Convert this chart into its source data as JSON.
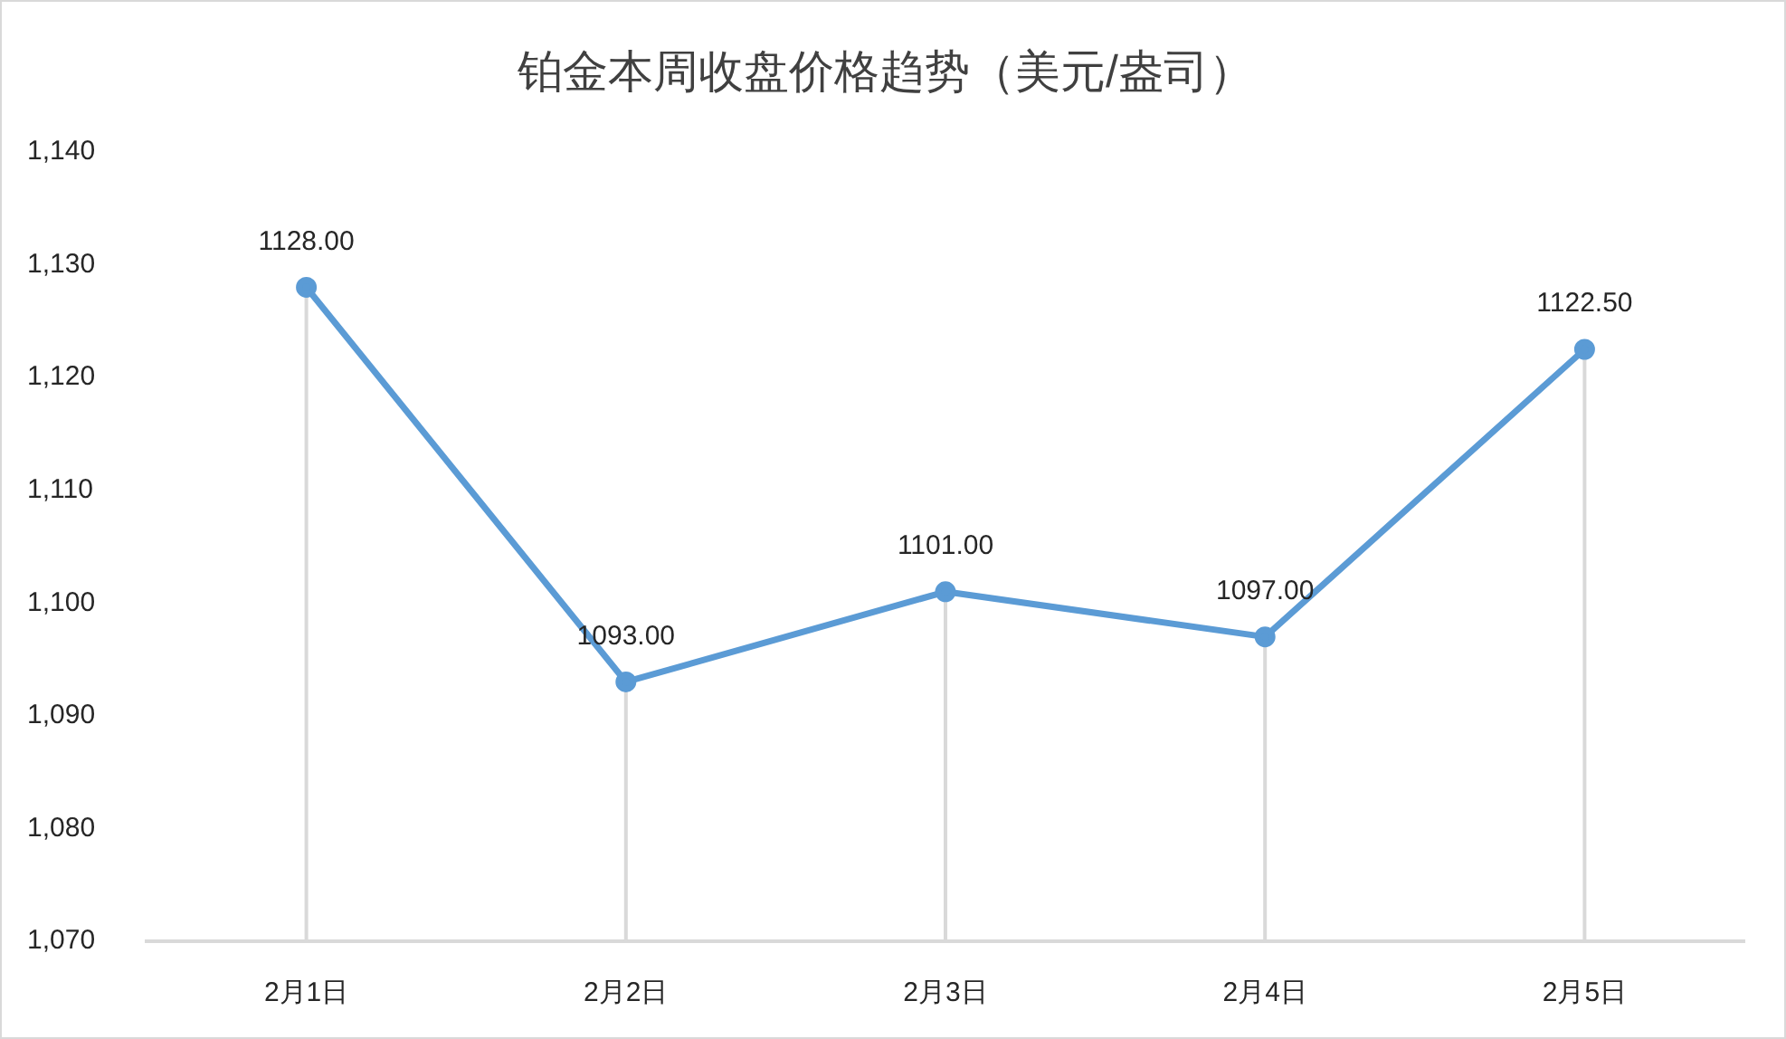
{
  "chart_data": {
    "type": "line",
    "title": "铂金本周收盘价格趋势（美元/盎司）",
    "categories": [
      "2月1日",
      "2月2日",
      "2月3日",
      "2月4日",
      "2月5日"
    ],
    "series": [
      {
        "color": "#5b9bd5",
        "values": [
          1128,
          1093,
          1101,
          1097,
          1122.5
        ],
        "value_labels": [
          "1128.00",
          "1093.00",
          "1101.00",
          "1097.00",
          "1122.50"
        ]
      }
    ],
    "ylim": [
      1070,
      1140
    ],
    "yticks": [
      {
        "value": 1070,
        "label": "1,070"
      },
      {
        "value": 1080,
        "label": "1,080"
      },
      {
        "value": 1090,
        "label": "1,090"
      },
      {
        "value": 1100,
        "label": "1,100"
      },
      {
        "value": 1110,
        "label": "1,110"
      },
      {
        "value": 1120,
        "label": "1,120"
      },
      {
        "value": 1130,
        "label": "1,130"
      },
      {
        "value": 1140,
        "label": "1,140"
      }
    ],
    "grid": "x",
    "marker": "circle",
    "line_style": "solid"
  }
}
